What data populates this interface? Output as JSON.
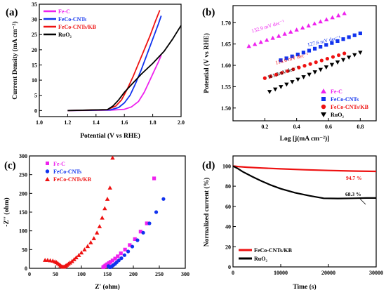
{
  "chart_data": [
    {
      "panel_label": "(a)",
      "type": "line",
      "xlabel": "Potential (V vs RHE)",
      "ylabel": "Current Density (mA cm⁻²)",
      "xlim": [
        1.0,
        2.0
      ],
      "ylim": [
        -2,
        35
      ],
      "xticks": [
        "1.0",
        "1.2",
        "1.4",
        "1.6",
        "1.8",
        "2.0"
      ],
      "yticks": [
        "0",
        "5",
        "10",
        "15",
        "20",
        "25",
        "30",
        "35"
      ],
      "legend_position": "top-left",
      "series": [
        {
          "name": "Fe-C",
          "color": "#ee22ee",
          "x": [
            1.2,
            1.5,
            1.6,
            1.65,
            1.7,
            1.74,
            1.78,
            1.81,
            1.84,
            1.86
          ],
          "y": [
            0,
            0.1,
            0.4,
            1.2,
            3.0,
            6.0,
            10.0,
            13.0,
            16.0,
            18.2
          ]
        },
        {
          "name": "FeCo-CNTs",
          "color": "#1133ee",
          "x": [
            1.2,
            1.5,
            1.56,
            1.6,
            1.64,
            1.68,
            1.72,
            1.76,
            1.8,
            1.84,
            1.86
          ],
          "y": [
            0,
            0.2,
            1.0,
            2.5,
            5.0,
            9.0,
            13.5,
            18.5,
            23.5,
            28.5,
            31.2
          ]
        },
        {
          "name": "FeCo-CNTs/KB",
          "color": "#ee1111",
          "x": [
            1.2,
            1.48,
            1.54,
            1.58,
            1.62,
            1.66,
            1.7,
            1.74,
            1.78,
            1.82,
            1.85
          ],
          "y": [
            0,
            0.3,
            1.5,
            3.5,
            7.0,
            11.0,
            15.5,
            20.0,
            24.5,
            29.5,
            33.0
          ]
        },
        {
          "name": "RuO₂",
          "color": "#000000",
          "x": [
            1.2,
            1.48,
            1.52,
            1.56,
            1.6,
            1.66,
            1.72,
            1.8,
            1.88,
            1.94,
            2.0
          ],
          "y": [
            0,
            0.3,
            1.5,
            3.5,
            6.0,
            9.0,
            12.0,
            15.5,
            19.5,
            23.5,
            28.0
          ]
        }
      ]
    },
    {
      "panel_label": "(b)",
      "type": "scatter",
      "xlabel": "Log [j(mA cm⁻²)]",
      "ylabel": "Potential (V vs RHE)",
      "xlim": [
        0.0,
        0.9
      ],
      "ylim": [
        1.47,
        1.74
      ],
      "xticks": [
        "0.2",
        "0.4",
        "0.6",
        "0.8"
      ],
      "yticks": [
        "1.50",
        "1.55",
        "1.60",
        "1.65",
        "1.70"
      ],
      "legend_position": "bottom-right",
      "series": [
        {
          "name": "Fe-C",
          "color": "#ee22ee",
          "marker": "triangle-up",
          "x0": 0.1,
          "x1": 0.7,
          "y0": 1.645,
          "y1": 1.722,
          "n": 17
        },
        {
          "name": "FeCo-CNTs",
          "color": "#1133ee",
          "marker": "square",
          "x0": 0.3,
          "x1": 0.8,
          "y0": 1.612,
          "y1": 1.675,
          "n": 15
        },
        {
          "name": "FeCo-CNTs/KB",
          "color": "#ee1111",
          "marker": "circle",
          "x0": 0.2,
          "x1": 0.7,
          "y0": 1.57,
          "y1": 1.628,
          "n": 15
        },
        {
          "name": "RuO₂",
          "color": "#000000",
          "marker": "triangle-down",
          "x0": 0.23,
          "x1": 0.8,
          "y0": 1.538,
          "y1": 1.63,
          "n": 17
        }
      ],
      "annotations": [
        {
          "text": "132.9 mV dec⁻¹",
          "color": "#ee22ee",
          "x": 0.12,
          "y": 1.676,
          "rotate": -17
        },
        {
          "text": "127.6 mV dec⁻¹",
          "color": "#1133ee",
          "x": 0.47,
          "y": 1.644,
          "rotate": -13
        },
        {
          "text": "116.6 mV dec⁻¹",
          "color": "#ee1111",
          "x": 0.27,
          "y": 1.602,
          "rotate": -15
        },
        {
          "text": "161.3mV dec⁻¹",
          "color": "#000000",
          "x": 0.22,
          "y": 1.568,
          "rotate": -18
        }
      ]
    },
    {
      "panel_label": "(c)",
      "type": "scatter",
      "xlabel": "Z' (ohm)",
      "ylabel": "-Z'' (ohm)",
      "xlim": [
        0,
        300
      ],
      "ylim": [
        0,
        300
      ],
      "xticks": [
        "0",
        "50",
        "100",
        "150",
        "200",
        "250",
        "300"
      ],
      "yticks": [
        "0",
        "50",
        "100",
        "150",
        "200",
        "250",
        "300"
      ],
      "legend_position": "top-left",
      "series": [
        {
          "name": "Fe-C",
          "color": "#ee22ee",
          "marker": "square",
          "x": [
            142,
            144,
            146,
            148,
            150,
            153,
            156,
            160,
            165,
            170,
            176,
            184,
            193,
            203,
            214,
            226,
            240
          ],
          "y": [
            3,
            5,
            7,
            9,
            11,
            14,
            17,
            21,
            26,
            32,
            40,
            50,
            62,
            78,
            98,
            120,
            240
          ]
        },
        {
          "name": "FeCo-CNTs",
          "color": "#1133ee",
          "marker": "circle",
          "x": [
            152,
            153,
            154,
            155,
            156,
            157,
            158,
            160,
            162,
            165,
            168,
            172,
            177,
            183,
            190,
            198,
            208,
            219,
            231,
            244,
            258
          ],
          "y": [
            6,
            4,
            3,
            3,
            3,
            4,
            5,
            7,
            9,
            12,
            16,
            21,
            27,
            35,
            45,
            58,
            75,
            95,
            120,
            150,
            185
          ]
        },
        {
          "name": "FeCo-CNTs/KB",
          "color": "#ee1111",
          "marker": "triangle-up",
          "x": [
            30,
            35,
            40,
            45,
            49,
            52,
            55,
            58,
            60,
            62,
            64,
            66,
            68,
            70,
            72,
            75,
            78,
            82,
            86,
            90,
            95,
            100,
            106,
            112,
            118,
            124,
            130,
            135,
            140,
            145,
            150,
            155,
            160
          ],
          "y": [
            22,
            22,
            21,
            20,
            18,
            16,
            13,
            10,
            7,
            5,
            4,
            4,
            5,
            7,
            9,
            12,
            15,
            19,
            24,
            29,
            35,
            42,
            50,
            59,
            69,
            80,
            95,
            112,
            135,
            160,
            185,
            215,
            295
          ]
        }
      ]
    },
    {
      "panel_label": "(d)",
      "type": "line",
      "xlabel": "Time (s)",
      "ylabel": "Normalized current (%)",
      "xlim": [
        0,
        30000
      ],
      "ylim": [
        0,
        110
      ],
      "xticks": [
        "0",
        "10000",
        "20000",
        "30000"
      ],
      "yticks": [
        "0",
        "20",
        "40",
        "60",
        "80",
        "100"
      ],
      "legend_position": "bottom-left",
      "series": [
        {
          "name": "FeCo-CNTs/KB",
          "color": "#ee1111",
          "x": [
            0,
            1000,
            3000,
            6000,
            10000,
            15000,
            20000,
            25000,
            30000
          ],
          "y": [
            100,
            99.5,
            98.8,
            98.0,
            97.2,
            96.3,
            95.6,
            95.0,
            94.7
          ]
        },
        {
          "name": "RuO₂",
          "color": "#000000",
          "x": [
            0,
            1000,
            2000,
            4000,
            6000,
            8000,
            10000,
            13000,
            16000,
            19000,
            22000,
            25000,
            28000,
            30000
          ],
          "y": [
            100,
            97.5,
            94.5,
            89.5,
            85.0,
            81.0,
            77.5,
            73.5,
            70.5,
            68.0,
            67.8,
            68.0,
            68.3,
            68.3
          ]
        }
      ],
      "annotations": [
        {
          "text": "94.7 %",
          "color": "#ee1111"
        },
        {
          "text": "68.3 %",
          "color": "#000000"
        }
      ]
    }
  ]
}
